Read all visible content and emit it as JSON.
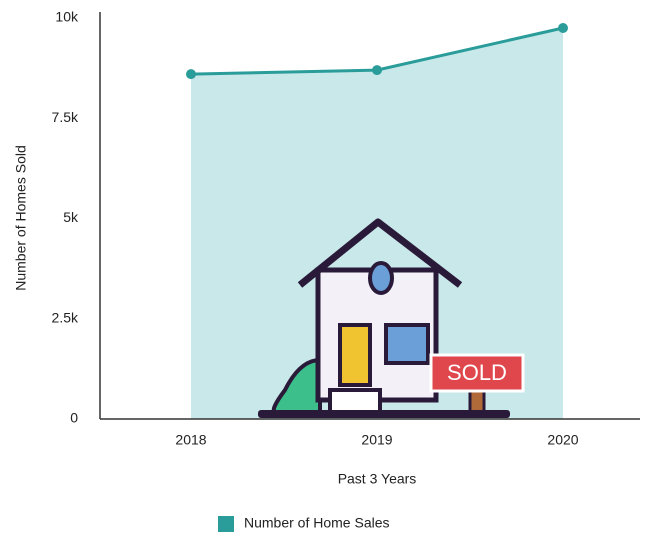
{
  "chart_data": {
    "type": "area",
    "x_label": "Past 3 Years",
    "y_label": "Number of Homes Sold",
    "categories": [
      "2018",
      "2019",
      "2020"
    ],
    "series": [
      {
        "name": "Number of Home Sales",
        "color": "#2a9d9a",
        "fill": "#c8e8ea",
        "values": [
          8600,
          8700,
          9750
        ]
      }
    ],
    "ylim": [
      0,
      10000
    ],
    "yticks": [
      0,
      {
        "value": 2500,
        "label": "2.5k"
      },
      {
        "value": 5000,
        "label": "5k"
      },
      {
        "value": 7500,
        "label": "7.5k"
      },
      {
        "value": 10000,
        "label": "10k"
      }
    ],
    "annotation": "SOLD",
    "legend": "bottom"
  }
}
